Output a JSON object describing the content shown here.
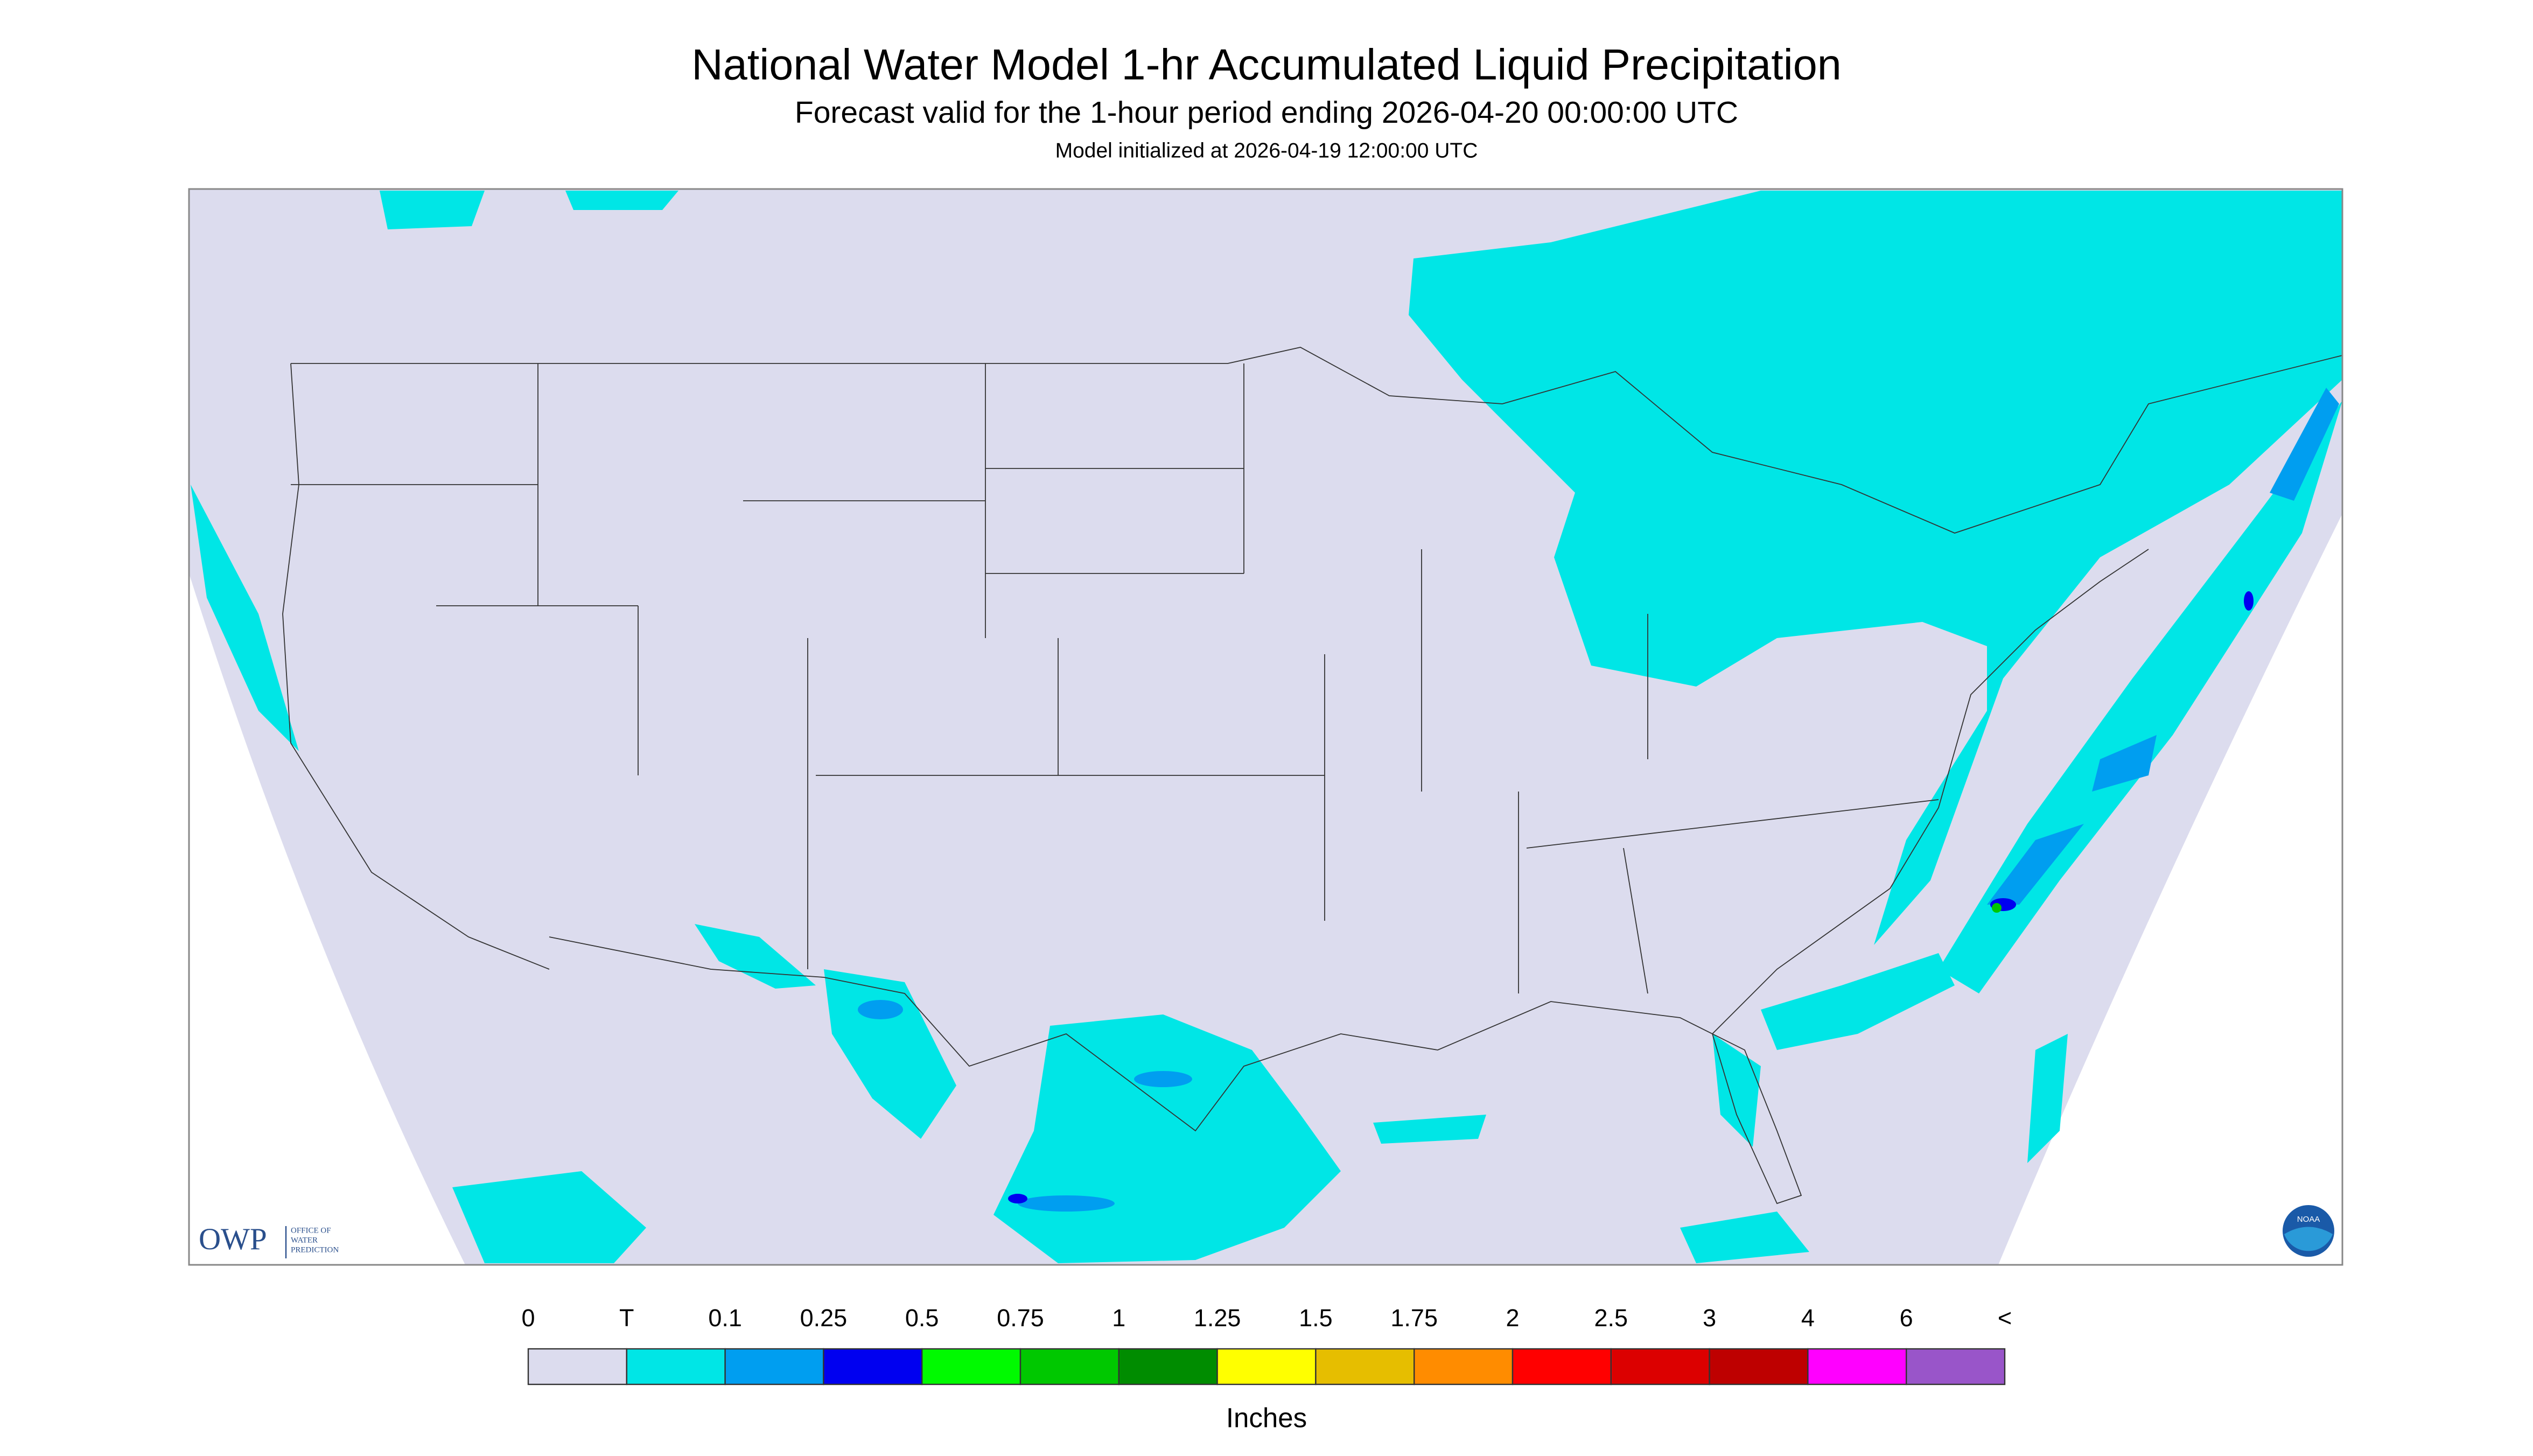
{
  "header": {
    "title": "National Water Model 1-hr Accumulated Liquid Precipitation",
    "subtitle": "Forecast valid for the 1-hour period ending 2026-04-20 00:00:00 UTC",
    "init": "Model initialized at 2026-04-19 12:00:00 UTC"
  },
  "legend": {
    "labels": [
      "0",
      "T",
      "0.1",
      "0.25",
      "0.5",
      "0.75",
      "1",
      "1.25",
      "1.5",
      "1.75",
      "2",
      "2.5",
      "3",
      "4",
      "6",
      "<"
    ],
    "colors": [
      "#dcdcee",
      "#00e6e6",
      "#009ef0",
      "#0000f0",
      "#00fa00",
      "#00c800",
      "#008c00",
      "#ffff00",
      "#e6be00",
      "#ff8c00",
      "#ff0000",
      "#dc0000",
      "#be0000",
      "#ff00ff",
      "#9955c9"
    ],
    "units": "Inches"
  },
  "logo": {
    "short": "OWP",
    "lines": [
      "OFFICE OF",
      "WATER",
      "PREDICTION"
    ]
  },
  "badge": "NOAA"
}
